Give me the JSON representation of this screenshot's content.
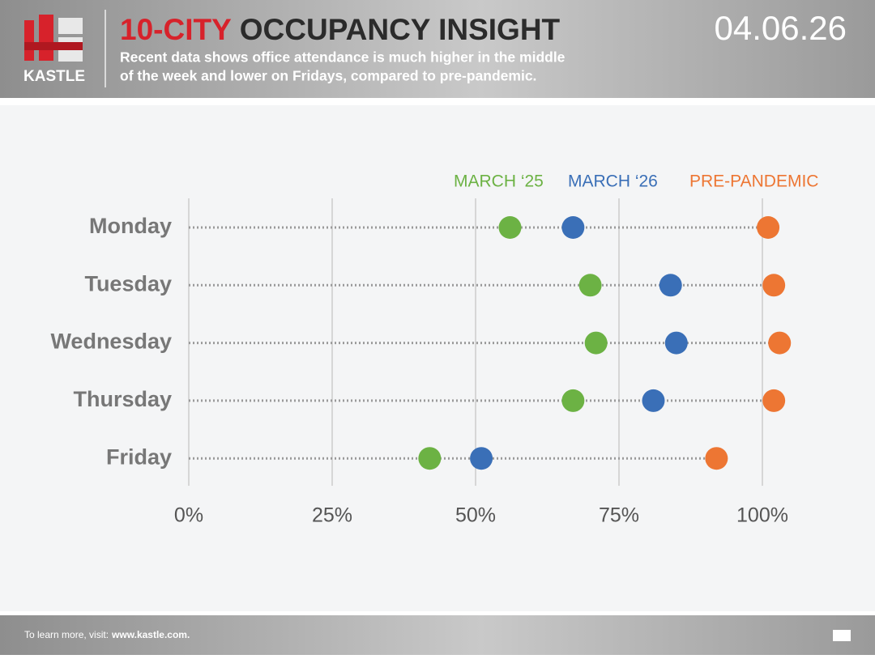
{
  "header": {
    "logo": "KASTLE",
    "title_highlight": "10-CITY",
    "title_rest": "OCCUPANCY INSIGHT",
    "subtitle_line1": "Recent data shows office attendance is much higher in the middle",
    "subtitle_line2": "of the week and lower on Fridays, compared to pre-pandemic.",
    "date": "04.06.26"
  },
  "chart_data": {
    "type": "dot",
    "categories": [
      "Monday",
      "Tuesday",
      "Wednesday",
      "Thursday",
      "Friday"
    ],
    "series": [
      {
        "name": "MARCH ‘25",
        "color": "#6cb244",
        "values": [
          56,
          70,
          71,
          67,
          42
        ]
      },
      {
        "name": "MARCH ‘26",
        "color": "#3a6fb7",
        "values": [
          67,
          84,
          85,
          81,
          51
        ]
      },
      {
        "name": "PRE-PANDEMIC",
        "color": "#ed7633",
        "values": [
          101,
          102,
          103,
          102,
          92
        ]
      }
    ],
    "xlim": [
      0,
      105
    ],
    "xticks": [
      {
        "value": 0,
        "label": "0%"
      },
      {
        "value": 25,
        "label": "25%"
      },
      {
        "value": 50,
        "label": "50%"
      },
      {
        "value": 75,
        "label": "75%"
      },
      {
        "value": 100,
        "label": "100%"
      }
    ],
    "grid": true
  },
  "footer": {
    "text": "To learn more, visit:",
    "link": "www.kastle.com."
  }
}
